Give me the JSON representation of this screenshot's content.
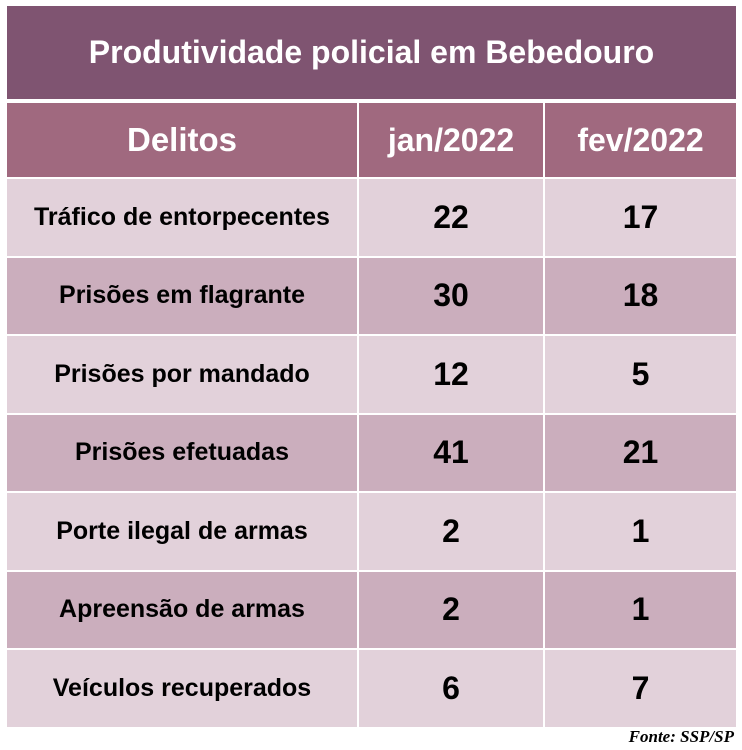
{
  "chart_data": {
    "type": "table",
    "title": "Produtividade policial em Bebedouro",
    "columns": [
      "Delitos",
      "jan/2022",
      "fev/2022"
    ],
    "rows": [
      {
        "label": "Tráfico de entorpecentes",
        "values": [
          22,
          17
        ]
      },
      {
        "label": "Prisões em flagrante",
        "values": [
          30,
          18
        ]
      },
      {
        "label": "Prisões por mandado",
        "values": [
          12,
          5
        ]
      },
      {
        "label": "Prisões efetuadas",
        "values": [
          41,
          21
        ]
      },
      {
        "label": "Porte ilegal de armas",
        "values": [
          2,
          1
        ]
      },
      {
        "label": "Apreensão de armas",
        "values": [
          2,
          1
        ]
      },
      {
        "label": "Veículos recuperados",
        "values": [
          6,
          7
        ]
      }
    ],
    "source": "Fonte: SSP/SP"
  },
  "colors": {
    "title_bg": "#7f5471",
    "header_bg": "#a0697f",
    "row_light": "#e2d1da",
    "row_dark": "#cbaebd"
  }
}
